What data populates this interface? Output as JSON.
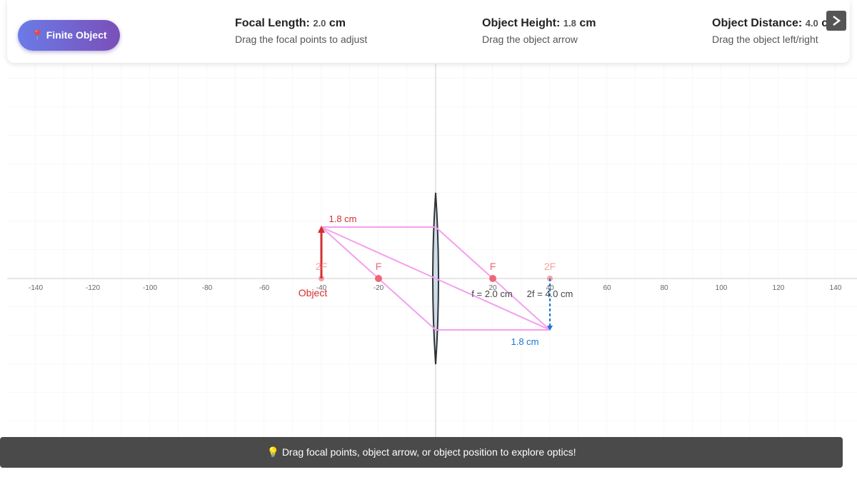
{
  "toolbar": {
    "mode_button": "📍 Finite Object",
    "params": [
      {
        "label": "Focal Length:",
        "value": "2.0",
        "unit": "cm",
        "hint": "Drag the focal points to adjust"
      },
      {
        "label": "Object Height:",
        "value": "1.8",
        "unit": "cm",
        "hint": "Drag the object arrow"
      },
      {
        "label": "Object Distance:",
        "value": "4.0",
        "unit": "cm",
        "hint": "Drag the object left/right"
      }
    ]
  },
  "canvas": {
    "axis_ticks": [
      -140,
      -120,
      -100,
      -80,
      -60,
      -40,
      -20,
      20,
      40,
      60,
      80,
      100,
      120,
      140
    ],
    "focal_labels": [
      "2F",
      "F",
      "F",
      "2F"
    ],
    "object_label": "Object",
    "object_height_label": "1.8 cm",
    "image_height_label": "1.8 cm",
    "focal_length_label": "f = 2.0 cm",
    "double_focal_label": "2f = 4.0 cm"
  },
  "hint": "💡 Drag focal points, object arrow, or object position to explore optics!"
}
